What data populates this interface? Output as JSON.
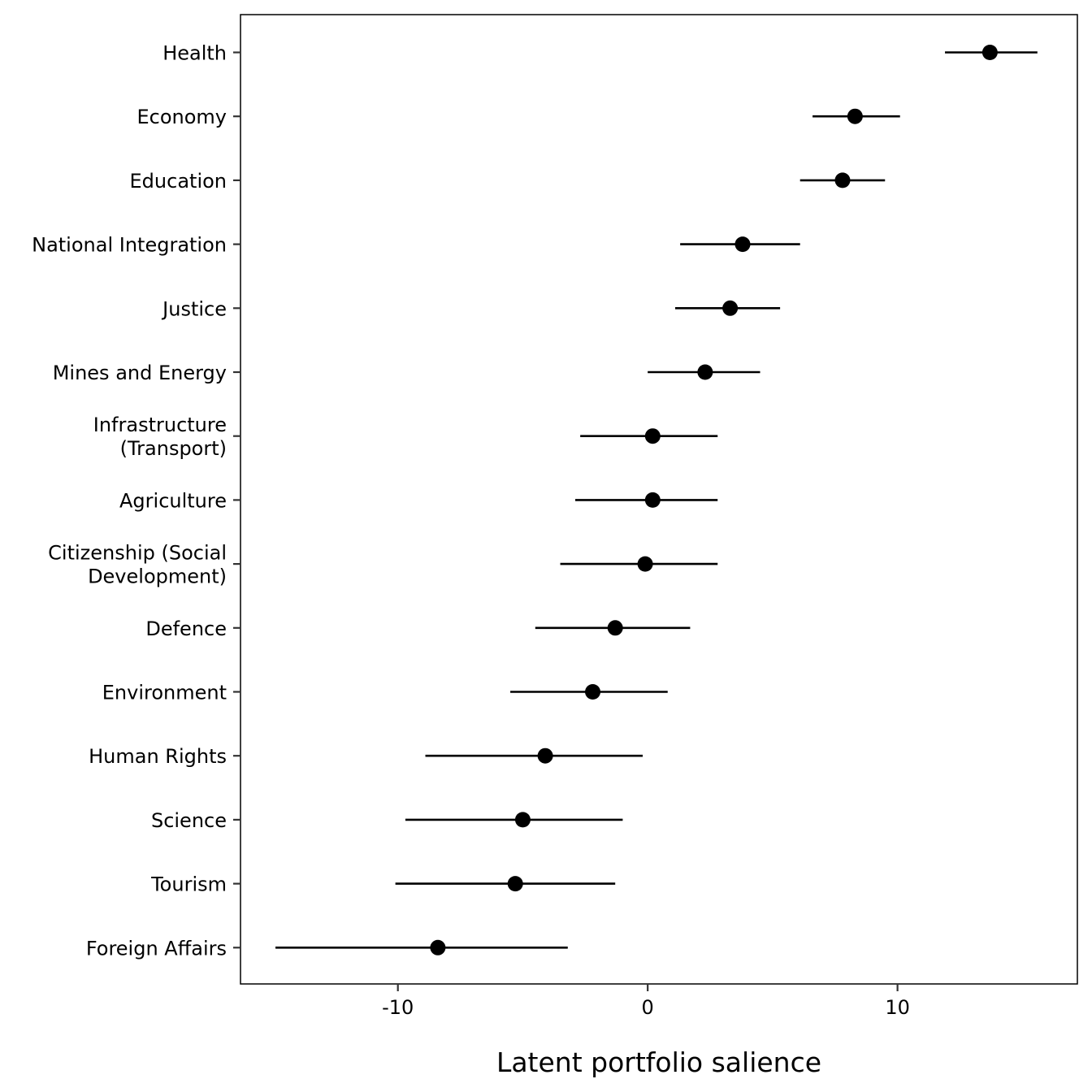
{
  "chart_data": {
    "type": "scatter",
    "subtype": "dot-and-whisker",
    "xlabel": "Latent portfolio salience",
    "ylabel": "",
    "title": "",
    "xlim": [
      -16.3,
      17.2
    ],
    "xticks": [
      -10,
      0,
      10
    ],
    "xtick_labels": [
      "-10",
      "0",
      "10"
    ],
    "grid": false,
    "legend": "none",
    "colors": {
      "point": "#000000",
      "interval": "#000000",
      "panel_border": "#000000",
      "background": "#ffffff"
    },
    "categories": [
      [
        "Health"
      ],
      [
        "Economy"
      ],
      [
        "Education"
      ],
      [
        "National Integration"
      ],
      [
        "Justice"
      ],
      [
        "Mines and Energy"
      ],
      [
        "Infrastructure",
        "(Transport)"
      ],
      [
        "Agriculture"
      ],
      [
        "Citizenship (Social",
        "Development)"
      ],
      [
        "Defence"
      ],
      [
        "Environment"
      ],
      [
        "Human Rights"
      ],
      [
        "Science"
      ],
      [
        "Tourism"
      ],
      [
        "Foreign Affairs"
      ]
    ],
    "series": [
      {
        "estimate": [
          13.7,
          8.3,
          7.8,
          3.8,
          3.3,
          2.3,
          0.2,
          0.2,
          -0.1,
          -1.3,
          -2.2,
          -4.1,
          -5.0,
          -5.3,
          -8.4
        ],
        "lower": [
          11.9,
          6.6,
          6.1,
          1.3,
          1.1,
          0.0,
          -2.7,
          -2.9,
          -3.5,
          -4.5,
          -5.5,
          -8.9,
          -9.7,
          -10.1,
          -14.9
        ],
        "upper": [
          15.6,
          10.1,
          9.5,
          6.1,
          5.3,
          4.5,
          2.8,
          2.8,
          2.8,
          1.7,
          0.8,
          -0.2,
          -1.0,
          -1.3,
          -3.2
        ]
      }
    ]
  }
}
